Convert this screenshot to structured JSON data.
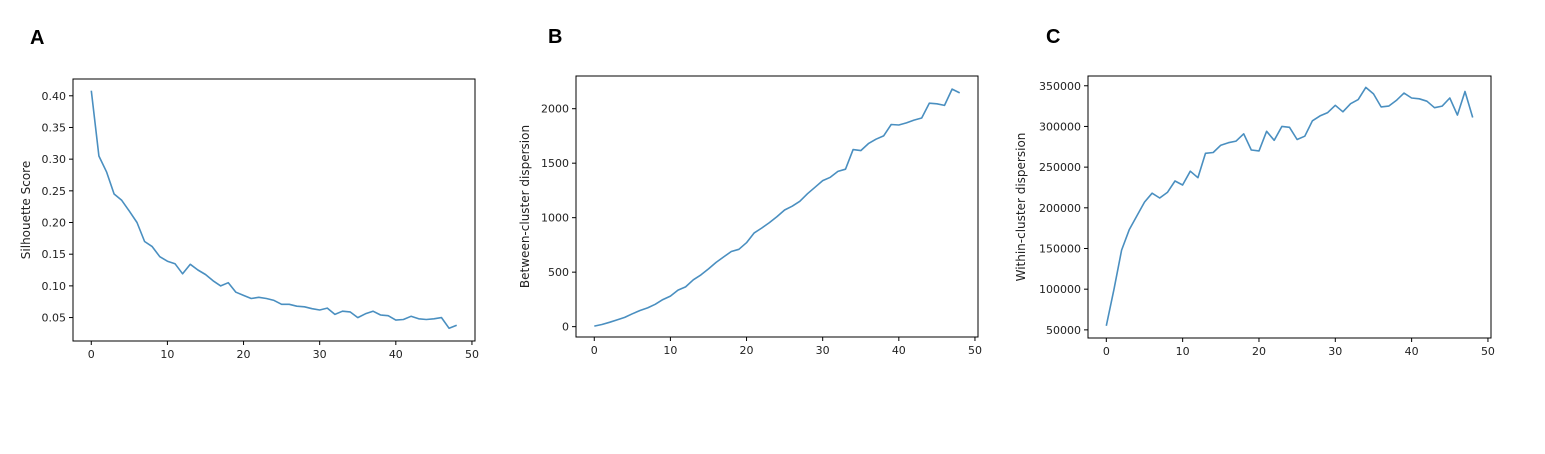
{
  "chart_data": [
    {
      "panel": "A",
      "type": "line",
      "title": "",
      "xlabel": "",
      "ylabel": "Silhouette Score",
      "xlim": [
        -2.4,
        50.4
      ],
      "ylim": [
        0.013,
        0.4265
      ],
      "xticks": [
        0,
        10,
        20,
        30,
        40,
        50
      ],
      "yticks": [
        0.05,
        0.1,
        0.15,
        0.2,
        0.25,
        0.3,
        0.35,
        0.4
      ],
      "ytick_labels": [
        "0.05",
        "0.10",
        "0.15",
        "0.20",
        "0.25",
        "0.30",
        "0.35",
        "0.40"
      ],
      "line_color": "#4a8fc0",
      "x": [
        0,
        1,
        2,
        3,
        4,
        5,
        6,
        7,
        8,
        9,
        10,
        11,
        12,
        13,
        14,
        15,
        16,
        17,
        18,
        19,
        20,
        21,
        22,
        23,
        24,
        25,
        26,
        27,
        28,
        29,
        30,
        31,
        32,
        33,
        34,
        35,
        36,
        37,
        38,
        39,
        40,
        41,
        42,
        43,
        44,
        45,
        46,
        47,
        48
      ],
      "values": [
        0.408,
        0.305,
        0.28,
        0.245,
        0.235,
        0.218,
        0.2,
        0.17,
        0.162,
        0.146,
        0.139,
        0.135,
        0.119,
        0.134,
        0.125,
        0.118,
        0.108,
        0.1,
        0.105,
        0.09,
        0.085,
        0.08,
        0.082,
        0.08,
        0.077,
        0.071,
        0.071,
        0.068,
        0.067,
        0.064,
        0.062,
        0.065,
        0.055,
        0.06,
        0.059,
        0.05,
        0.056,
        0.06,
        0.054,
        0.053,
        0.046,
        0.047,
        0.052,
        0.048,
        0.047,
        0.048,
        0.05,
        0.033,
        0.038
      ]
    },
    {
      "panel": "B",
      "type": "line",
      "title": "",
      "xlabel": "",
      "ylabel": "Between-cluster dispersion",
      "xlim": [
        -2.4,
        50.4
      ],
      "ylim": [
        -95,
        2300
      ],
      "xticks": [
        0,
        10,
        20,
        30,
        40,
        50
      ],
      "yticks": [
        0,
        500,
        1000,
        1500,
        2000
      ],
      "ytick_labels": [
        "0",
        "500",
        "1000",
        "1500",
        "2000"
      ],
      "line_color": "#4a8fc0",
      "x": [
        0,
        1,
        2,
        3,
        4,
        5,
        6,
        7,
        8,
        9,
        10,
        11,
        12,
        13,
        14,
        15,
        16,
        17,
        18,
        19,
        20,
        21,
        22,
        23,
        24,
        25,
        26,
        27,
        28,
        29,
        30,
        31,
        32,
        33,
        34,
        35,
        36,
        37,
        38,
        39,
        40,
        41,
        42,
        43,
        44,
        45,
        46,
        47,
        48
      ],
      "values": [
        5,
        20,
        40,
        62,
        85,
        118,
        148,
        172,
        205,
        248,
        280,
        335,
        365,
        430,
        475,
        530,
        590,
        640,
        690,
        710,
        770,
        860,
        905,
        955,
        1010,
        1070,
        1105,
        1150,
        1220,
        1280,
        1340,
        1370,
        1425,
        1445,
        1625,
        1615,
        1680,
        1720,
        1750,
        1855,
        1850,
        1870,
        1895,
        1915,
        2050,
        2045,
        2030,
        2180,
        2145
      ]
    },
    {
      "panel": "C",
      "type": "line",
      "title": "",
      "xlabel": "",
      "ylabel": "Within-cluster dispersion",
      "xlim": [
        -2.4,
        50.4
      ],
      "ylim": [
        40000,
        362000
      ],
      "xticks": [
        0,
        10,
        20,
        30,
        40,
        50
      ],
      "yticks": [
        50000,
        100000,
        150000,
        200000,
        250000,
        300000,
        350000
      ],
      "ytick_labels": [
        "50000",
        "100000",
        "150000",
        "200000",
        "250000",
        "300000",
        "350000"
      ],
      "line_color": "#4a8fc0",
      "x": [
        0,
        1,
        2,
        3,
        4,
        5,
        6,
        7,
        8,
        9,
        10,
        11,
        12,
        13,
        14,
        15,
        16,
        17,
        18,
        19,
        20,
        21,
        22,
        23,
        24,
        25,
        26,
        27,
        28,
        29,
        30,
        31,
        32,
        33,
        34,
        35,
        36,
        37,
        38,
        39,
        40,
        41,
        42,
        43,
        44,
        45,
        46,
        47,
        48
      ],
      "values": [
        55000,
        100000,
        148000,
        173000,
        190000,
        207000,
        218000,
        212000,
        219000,
        233000,
        228000,
        245000,
        237000,
        267000,
        268000,
        277000,
        280000,
        282000,
        291000,
        271000,
        270000,
        294000,
        283000,
        300000,
        299000,
        284000,
        288000,
        307000,
        313000,
        317000,
        326000,
        318000,
        328000,
        333000,
        348000,
        340000,
        324000,
        325000,
        332000,
        341000,
        335000,
        334000,
        331000,
        323000,
        325000,
        335000,
        314000,
        343000,
        311000
      ]
    }
  ]
}
